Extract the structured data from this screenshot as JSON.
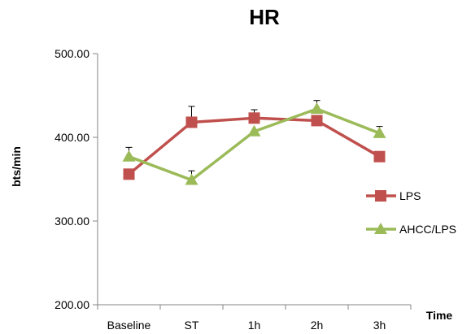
{
  "chart_data": {
    "type": "line",
    "title": "HR",
    "xlabel": "Time",
    "ylabel": "bts/min",
    "categories": [
      "Baseline",
      "ST",
      "1h",
      "2h",
      "3h"
    ],
    "ylim": [
      200,
      500
    ],
    "yticks": [
      "200.00",
      "300.00",
      "400.00",
      "500.00"
    ],
    "ytick_values": [
      200,
      300,
      400,
      500
    ],
    "grid": false,
    "legend_position": "right",
    "series": [
      {
        "name": "LPS",
        "color": "#c0504d",
        "marker": "square",
        "values": [
          356,
          418,
          423,
          420,
          377
        ],
        "error_plus": [
          0,
          19,
          10,
          0,
          0
        ]
      },
      {
        "name": "AHCC/LPS",
        "color": "#9bbb59",
        "marker": "triangle",
        "values": [
          377,
          349,
          407,
          434,
          405
        ],
        "error_plus": [
          11,
          11,
          0,
          10,
          8
        ]
      }
    ]
  }
}
